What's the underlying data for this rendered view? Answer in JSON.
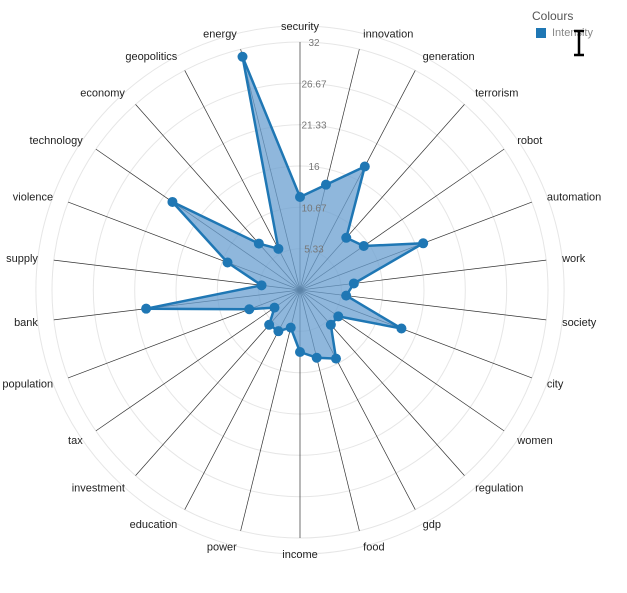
{
  "chart_data": {
    "type": "radar",
    "categories": [
      "security",
      "innovation",
      "generation",
      "terrorism",
      "robot",
      "automation",
      "work",
      "society",
      "city",
      "women",
      "regulation",
      "gdp",
      "food",
      "income",
      "power",
      "education",
      "investment",
      "tax",
      "population",
      "bank",
      "supply",
      "violence",
      "technology",
      "economy",
      "geopolitics",
      "energy"
    ],
    "series": [
      {
        "name": "Intensity",
        "values": [
          12,
          14,
          18,
          9,
          10,
          17,
          7,
          6,
          14,
          6,
          6,
          10,
          9,
          8,
          5,
          6,
          6,
          4,
          7,
          20,
          5,
          10,
          20,
          8,
          6,
          31
        ]
      }
    ],
    "ticks": [
      "5.33",
      "10.67",
      "16",
      "21.33",
      "26.67",
      "32"
    ],
    "rmax": 32,
    "grid": true,
    "legend_title": "Colours",
    "legend_placement": "top-right",
    "colors": {
      "series": "#1f77b4",
      "fill": "#6a9fd0",
      "grid": "#e6e6e6",
      "spoke": "#333333"
    }
  }
}
